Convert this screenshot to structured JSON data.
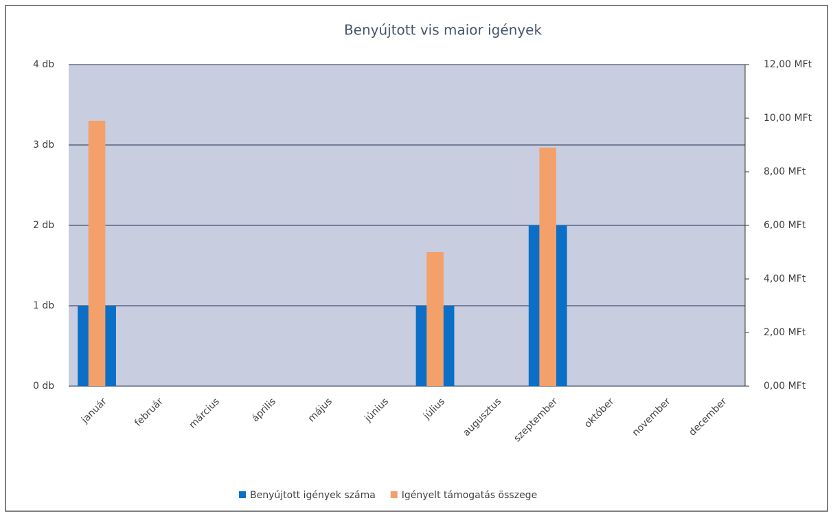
{
  "chart_data": {
    "type": "bar",
    "title": "Benyújtott vis maior igények",
    "categories": [
      "január",
      "február",
      "március",
      "április",
      "május",
      "június",
      "július",
      "augusztus",
      "szeptember",
      "október",
      "november",
      "december"
    ],
    "series": [
      {
        "name": "Benyújtott igények száma",
        "color": "#0b6fc7",
        "values": [
          1,
          0,
          0,
          0,
          0,
          0,
          1,
          0,
          2,
          0,
          0,
          0
        ]
      },
      {
        "name": "Igényelt támogatás összege",
        "color": "#f4a06b",
        "axis": "y2",
        "values": [
          9.9,
          0,
          0,
          0,
          0,
          0,
          5.0,
          0,
          8.9,
          0,
          0,
          0
        ]
      }
    ],
    "ylim": [
      0,
      4
    ],
    "yticks": [
      {
        "value": 0,
        "label": "0 db"
      },
      {
        "value": 1,
        "label": "1 db"
      },
      {
        "value": 2,
        "label": "2 db"
      },
      {
        "value": 3,
        "label": "3 db"
      },
      {
        "value": 4,
        "label": "4 db"
      }
    ],
    "y2lim": [
      0,
      12
    ],
    "y2ticks": [
      {
        "value": 0,
        "label": "0,00 MFt"
      },
      {
        "value": 2,
        "label": "2,00 MFt"
      },
      {
        "value": 4,
        "label": "4,00 MFt"
      },
      {
        "value": 6,
        "label": "6,00 MFt"
      },
      {
        "value": 8,
        "label": "8,00 MFt"
      },
      {
        "value": 10,
        "label": "10,00 MFt"
      },
      {
        "value": 12,
        "label": "12,00 MFt"
      }
    ],
    "grid": true,
    "legend": "bottom"
  }
}
